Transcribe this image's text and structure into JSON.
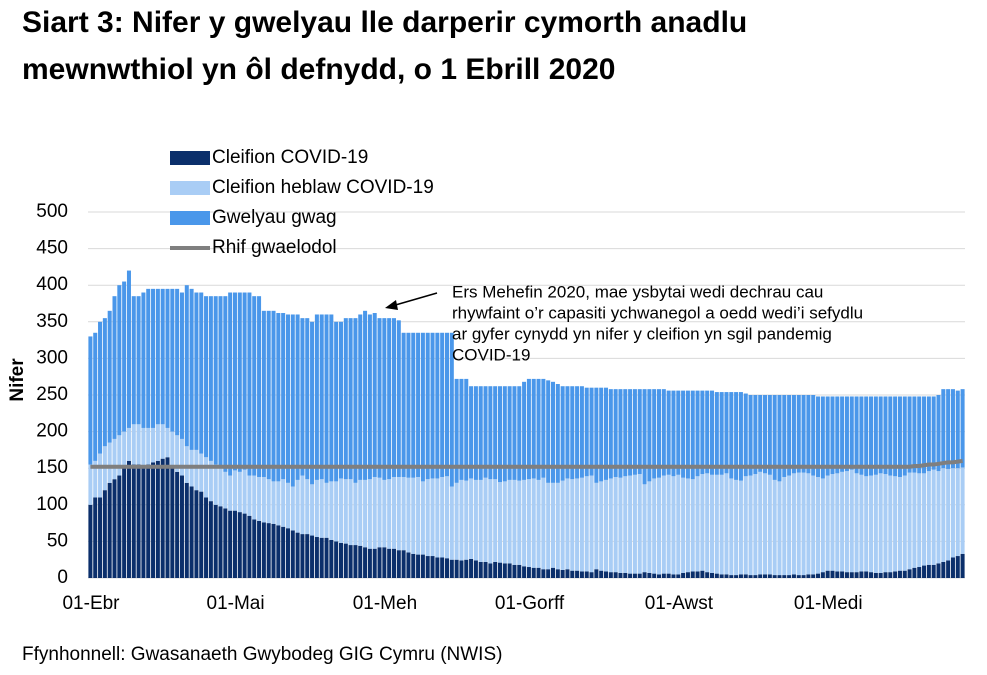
{
  "chart_data": {
    "type": "bar",
    "stacked": true,
    "title_lines": [
      "Siart 3: Nifer y gwelyau lle darperir cymorth anadlu",
      "mewnwthiol yn ôl defnydd, o 1 Ebrill 2020"
    ],
    "y_label": "Nifer",
    "source": "Ffynhonnell: Gwasanaeth Gwybodeg GIG Cymru (NWIS)",
    "annotation": [
      "Ers Mehefin 2020, mae ysbytai wedi dechrau cau",
      "rhywfaint o’r capasiti ychwanegol a oedd wedi’i sefydlu",
      "ar gyfer cynydd yn nifer y cleifion yn sgil pandemig",
      "COVID-19"
    ],
    "ylim": [
      0,
      500
    ],
    "yticks": [
      0,
      50,
      100,
      150,
      200,
      250,
      300,
      350,
      400,
      450,
      500
    ],
    "grid": true,
    "categories": [
      "01-Ebr",
      null,
      null,
      null,
      null,
      null,
      null,
      null,
      null,
      null,
      null,
      null,
      null,
      null,
      null,
      null,
      null,
      null,
      null,
      null,
      null,
      null,
      null,
      null,
      null,
      null,
      null,
      null,
      null,
      null,
      "01-Mai",
      null,
      null,
      null,
      null,
      null,
      null,
      null,
      null,
      null,
      null,
      null,
      null,
      null,
      null,
      null,
      null,
      null,
      null,
      null,
      null,
      null,
      null,
      null,
      null,
      null,
      null,
      null,
      null,
      null,
      null,
      "01-Meh",
      null,
      null,
      null,
      null,
      null,
      null,
      null,
      null,
      null,
      null,
      null,
      null,
      null,
      null,
      null,
      null,
      null,
      null,
      null,
      null,
      null,
      null,
      null,
      null,
      null,
      null,
      null,
      null,
      null,
      "01-Gorff",
      null,
      null,
      null,
      null,
      null,
      null,
      null,
      null,
      null,
      null,
      null,
      null,
      null,
      null,
      null,
      null,
      null,
      null,
      null,
      null,
      null,
      null,
      null,
      null,
      null,
      null,
      null,
      null,
      null,
      null,
      "01-Awst",
      null,
      null,
      null,
      null,
      null,
      null,
      null,
      null,
      null,
      null,
      null,
      null,
      null,
      null,
      null,
      null,
      null,
      null,
      null,
      null,
      null,
      null,
      null,
      null,
      null,
      null,
      null,
      null,
      null,
      null,
      "01-Medi",
      null,
      null,
      null,
      null,
      null,
      null,
      null,
      null,
      null,
      null,
      null,
      null,
      null,
      null,
      null,
      null,
      null,
      null,
      null,
      null,
      null,
      null,
      null,
      null,
      null,
      null,
      null,
      null
    ],
    "series": [
      {
        "name": "Cleifion COVID-19",
        "color": "#0b2f6b",
        "values": [
          100,
          110,
          110,
          120,
          130,
          135,
          140,
          150,
          160,
          155,
          155,
          150,
          155,
          158,
          160,
          163,
          165,
          150,
          145,
          140,
          130,
          125,
          120,
          118,
          110,
          105,
          100,
          98,
          95,
          92,
          92,
          90,
          88,
          85,
          80,
          78,
          76,
          75,
          74,
          72,
          70,
          68,
          65,
          62,
          60,
          60,
          58,
          56,
          55,
          55,
          52,
          50,
          48,
          47,
          45,
          45,
          44,
          42,
          40,
          40,
          42,
          42,
          40,
          40,
          38,
          38,
          35,
          33,
          32,
          32,
          30,
          30,
          28,
          28,
          27,
          25,
          25,
          24,
          25,
          26,
          24,
          22,
          22,
          20,
          22,
          21,
          20,
          20,
          18,
          18,
          16,
          15,
          14,
          14,
          12,
          12,
          14,
          12,
          11,
          12,
          10,
          10,
          9,
          9,
          8,
          12,
          10,
          9,
          8,
          8,
          7,
          7,
          6,
          6,
          6,
          8,
          7,
          6,
          5,
          6,
          6,
          5,
          5,
          7,
          8,
          9,
          9,
          10,
          8,
          7,
          6,
          5,
          5,
          4,
          4,
          5,
          5,
          4,
          4,
          5,
          5,
          5,
          4,
          4,
          4,
          4,
          5,
          4,
          4,
          5,
          5,
          6,
          8,
          10,
          10,
          9,
          9,
          8,
          8,
          8,
          9,
          9,
          8,
          7,
          7,
          8,
          8,
          9,
          10,
          10,
          12,
          14,
          15,
          17,
          18,
          18,
          20,
          22,
          24,
          28,
          30,
          33
        ]
      },
      {
        "name": "Cleifion heblaw COVID-19",
        "color": "#a9cdf5",
        "values": [
          55,
          50,
          60,
          60,
          55,
          55,
          55,
          50,
          45,
          55,
          55,
          55,
          50,
          47,
          50,
          47,
          40,
          50,
          50,
          50,
          50,
          50,
          55,
          52,
          55,
          55,
          55,
          52,
          50,
          48,
          55,
          55,
          60,
          55,
          60,
          60,
          62,
          60,
          58,
          60,
          65,
          62,
          60,
          72,
          80,
          75,
          70,
          78,
          80,
          75,
          80,
          82,
          88,
          88,
          90,
          85,
          90,
          92,
          95,
          98,
          95,
          92,
          95,
          98,
          100,
          100,
          102,
          104,
          106,
          100,
          105,
          106,
          108,
          110,
          112,
          100,
          105,
          110,
          108,
          110,
          110,
          112,
          115,
          115,
          113,
          110,
          112,
          114,
          116,
          115,
          118,
          120,
          122,
          120,
          125,
          118,
          116,
          118,
          122,
          124,
          125,
          126,
          128,
          130,
          132,
          118,
          122,
          125,
          128,
          130,
          130,
          132,
          134,
          135,
          136,
          120,
          125,
          130,
          132,
          134,
          135,
          134,
          136,
          130,
          128,
          126,
          130,
          132,
          135,
          134,
          135,
          136,
          138,
          132,
          130,
          128,
          134,
          136,
          138,
          140,
          138,
          136,
          130,
          128,
          134,
          136,
          138,
          140,
          140,
          138,
          135,
          132,
          128,
          130,
          132,
          134,
          136,
          138,
          140,
          135,
          132,
          130,
          132,
          134,
          136,
          134,
          132,
          130,
          128,
          130,
          132,
          130,
          128,
          126,
          128,
          130,
          126,
          128,
          125,
          122,
          120,
          118
        ]
      },
      {
        "name": "Gwelyau gwag",
        "color": "#4a97ea",
        "values": [
          175,
          175,
          180,
          175,
          180,
          195,
          205,
          205,
          215,
          175,
          175,
          185,
          190,
          190,
          185,
          185,
          190,
          195,
          200,
          200,
          220,
          220,
          215,
          220,
          220,
          225,
          230,
          235,
          240,
          250,
          243,
          245,
          242,
          250,
          245,
          247,
          227,
          230,
          233,
          230,
          227,
          230,
          235,
          226,
          215,
          220,
          222,
          226,
          225,
          230,
          228,
          218,
          214,
          220,
          220,
          225,
          226,
          231,
          225,
          224,
          218,
          221,
          220,
          217,
          214,
          197,
          198,
          198,
          197,
          203,
          200,
          199,
          199,
          197,
          196,
          210,
          142,
          138,
          139,
          126,
          128,
          128,
          125,
          127,
          127,
          131,
          130,
          128,
          128,
          129,
          134,
          137,
          136,
          138,
          135,
          140,
          138,
          135,
          129,
          126,
          127,
          126,
          125,
          121,
          120,
          130,
          128,
          126,
          122,
          120,
          121,
          119,
          118,
          117,
          116,
          130,
          126,
          122,
          121,
          118,
          115,
          117,
          115,
          119,
          120,
          121,
          117,
          114,
          113,
          115,
          113,
          113,
          111,
          118,
          120,
          121,
          113,
          110,
          108,
          105,
          107,
          109,
          116,
          118,
          112,
          110,
          107,
          106,
          106,
          107,
          110,
          110,
          112,
          108,
          106,
          105,
          103,
          102,
          100,
          105,
          107,
          109,
          108,
          107,
          105,
          106,
          108,
          109,
          110,
          108,
          104,
          104,
          105,
          105,
          102,
          100,
          104,
          108,
          109,
          108,
          106,
          107
        ]
      },
      {
        "name": "Rhif gwaelodol",
        "type": "line",
        "color": "#7f7f7f",
        "values": [
          152,
          152,
          152,
          152,
          152,
          152,
          152,
          152,
          152,
          152,
          152,
          152,
          152,
          152,
          152,
          152,
          152,
          152,
          152,
          152,
          152,
          152,
          152,
          152,
          152,
          152,
          152,
          152,
          152,
          152,
          152,
          152,
          152,
          152,
          152,
          152,
          152,
          152,
          152,
          152,
          152,
          152,
          152,
          152,
          152,
          152,
          152,
          152,
          152,
          152,
          152,
          152,
          152,
          152,
          152,
          152,
          152,
          152,
          152,
          152,
          152,
          152,
          152,
          152,
          152,
          152,
          152,
          152,
          152,
          152,
          152,
          152,
          152,
          152,
          152,
          152,
          152,
          152,
          152,
          152,
          152,
          152,
          152,
          152,
          152,
          152,
          152,
          152,
          152,
          152,
          152,
          152,
          152,
          152,
          152,
          152,
          152,
          152,
          152,
          152,
          152,
          152,
          152,
          152,
          152,
          152,
          152,
          152,
          152,
          152,
          152,
          152,
          152,
          152,
          152,
          152,
          152,
          152,
          152,
          152,
          152,
          152,
          152,
          152,
          152,
          152,
          152,
          152,
          152,
          152,
          152,
          152,
          152,
          152,
          152,
          152,
          152,
          152,
          152,
          152,
          152,
          152,
          152,
          152,
          152,
          152,
          152,
          152,
          152,
          152,
          152,
          152,
          152,
          152,
          152,
          152,
          152,
          152,
          152,
          152,
          152,
          152,
          152,
          152,
          152,
          152,
          152,
          152,
          152,
          152,
          152,
          153,
          153,
          154,
          155,
          155,
          156,
          157,
          158,
          158,
          159,
          160
        ]
      }
    ]
  }
}
